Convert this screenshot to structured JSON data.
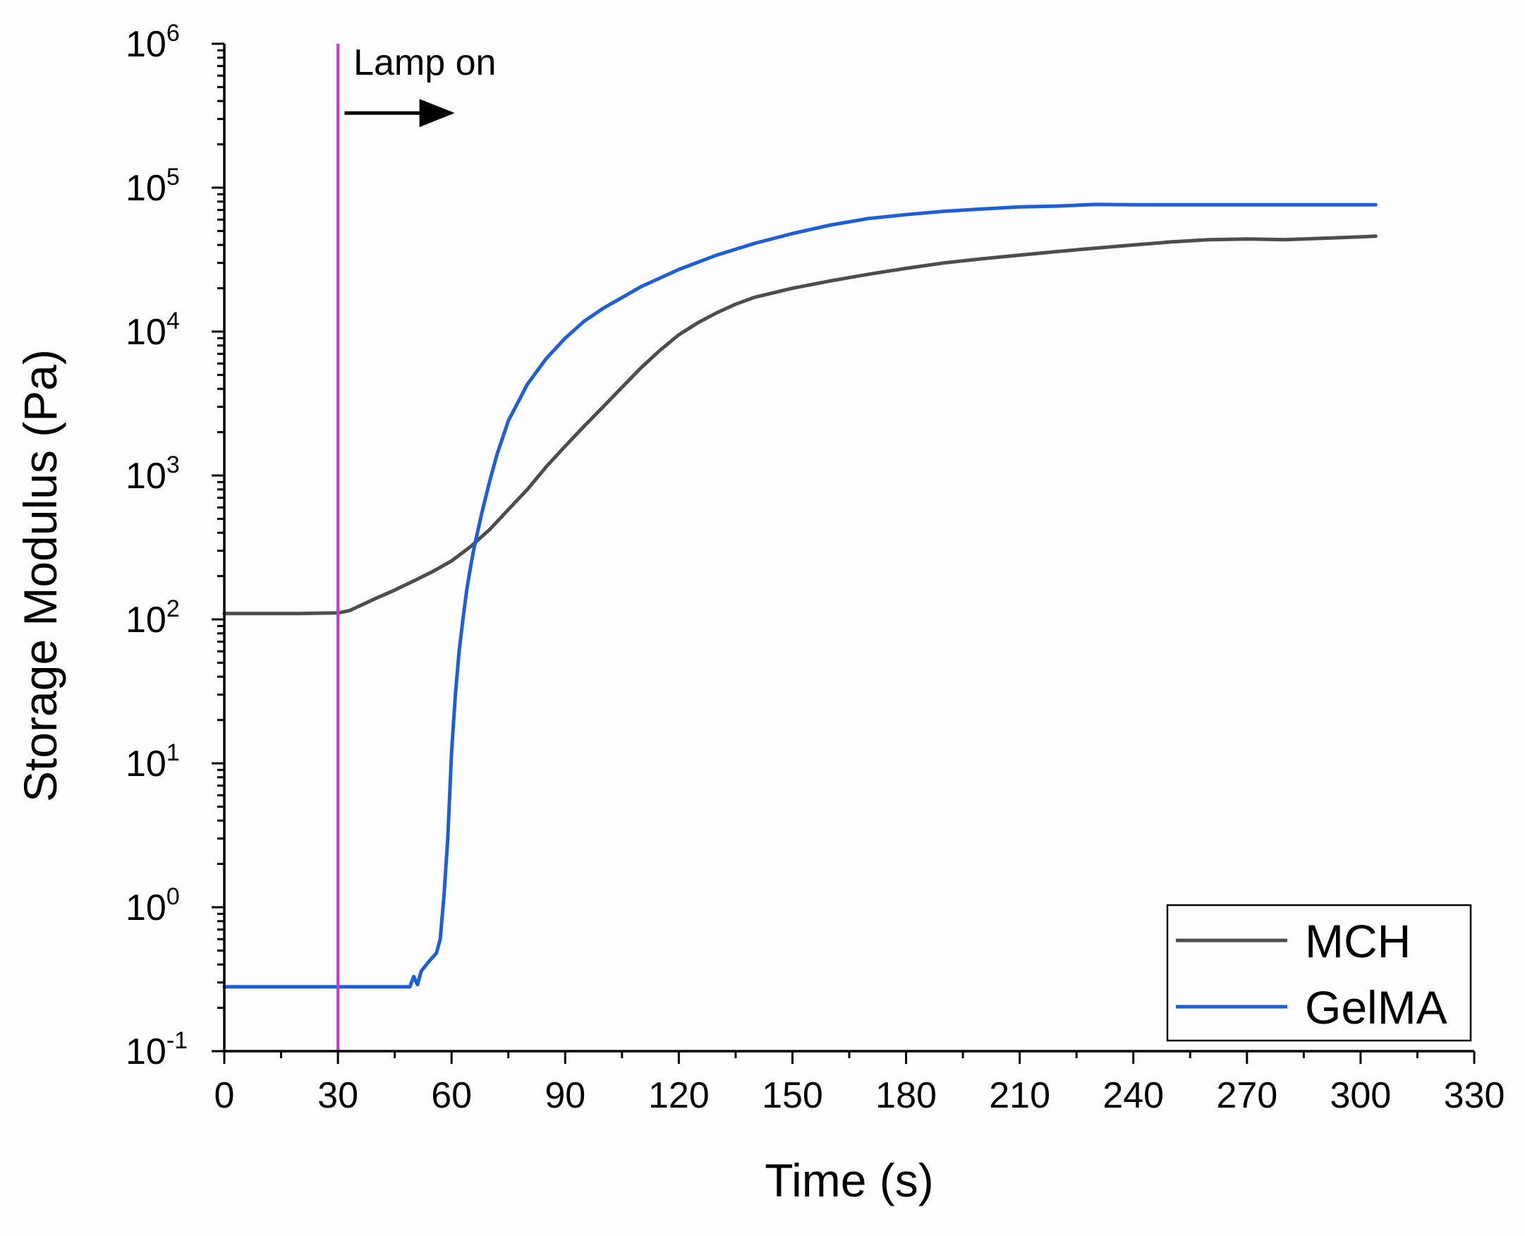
{
  "chart_data": {
    "type": "line",
    "xlabel": "Time (s)",
    "ylabel": "Storage Modulus (Pa)",
    "xlim": [
      0,
      330
    ],
    "ylim_log10": [
      -1,
      6
    ],
    "yscale": "log",
    "xticks": [
      0,
      30,
      60,
      90,
      120,
      150,
      180,
      210,
      240,
      270,
      300,
      330
    ],
    "yticks": [
      {
        "base": "10",
        "exp": "-1",
        "value": 0.1
      },
      {
        "base": "10",
        "exp": "0",
        "value": 1
      },
      {
        "base": "10",
        "exp": "1",
        "value": 10
      },
      {
        "base": "10",
        "exp": "2",
        "value": 100
      },
      {
        "base": "10",
        "exp": "3",
        "value": 1000
      },
      {
        "base": "10",
        "exp": "4",
        "value": 10000
      },
      {
        "base": "10",
        "exp": "5",
        "value": 100000
      },
      {
        "base": "10",
        "exp": "6",
        "value": 1000000
      }
    ],
    "legend_position": "bottom-right",
    "series": [
      {
        "name": "MCH",
        "color": "#4d4d4d",
        "points": [
          [
            0,
            110
          ],
          [
            10,
            110
          ],
          [
            20,
            110
          ],
          [
            30,
            111
          ],
          [
            33,
            115
          ],
          [
            36,
            125
          ],
          [
            40,
            140
          ],
          [
            45,
            160
          ],
          [
            50,
            185
          ],
          [
            55,
            215
          ],
          [
            60,
            255
          ],
          [
            65,
            320
          ],
          [
            70,
            420
          ],
          [
            75,
            580
          ],
          [
            80,
            800
          ],
          [
            85,
            1150
          ],
          [
            90,
            1600
          ],
          [
            95,
            2200
          ],
          [
            100,
            3000
          ],
          [
            105,
            4100
          ],
          [
            110,
            5600
          ],
          [
            115,
            7400
          ],
          [
            120,
            9500
          ],
          [
            125,
            11500
          ],
          [
            130,
            13500
          ],
          [
            135,
            15500
          ],
          [
            140,
            17300
          ],
          [
            150,
            20000
          ],
          [
            160,
            22500
          ],
          [
            170,
            25000
          ],
          [
            180,
            27500
          ],
          [
            190,
            30000
          ],
          [
            200,
            32000
          ],
          [
            210,
            34000
          ],
          [
            220,
            36000
          ],
          [
            230,
            38000
          ],
          [
            240,
            40000
          ],
          [
            250,
            42000
          ],
          [
            260,
            43500
          ],
          [
            270,
            44000
          ],
          [
            280,
            43500
          ],
          [
            290,
            44500
          ],
          [
            300,
            45500
          ],
          [
            304,
            46000
          ]
        ]
      },
      {
        "name": "GelMA",
        "color": "#1f5fd6",
        "points": [
          [
            0,
            0.28
          ],
          [
            10,
            0.28
          ],
          [
            20,
            0.28
          ],
          [
            30,
            0.28
          ],
          [
            40,
            0.28
          ],
          [
            49,
            0.28
          ],
          [
            50,
            0.33
          ],
          [
            51,
            0.29
          ],
          [
            52,
            0.36
          ],
          [
            54,
            0.42
          ],
          [
            56,
            0.48
          ],
          [
            57,
            0.6
          ],
          [
            58,
            1.2
          ],
          [
            59,
            3
          ],
          [
            60,
            12
          ],
          [
            61,
            30
          ],
          [
            62,
            60
          ],
          [
            63,
            100
          ],
          [
            64,
            160
          ],
          [
            65,
            230
          ],
          [
            66,
            320
          ],
          [
            68,
            550
          ],
          [
            70,
            900
          ],
          [
            72,
            1400
          ],
          [
            75,
            2400
          ],
          [
            80,
            4300
          ],
          [
            85,
            6500
          ],
          [
            90,
            9000
          ],
          [
            95,
            11800
          ],
          [
            100,
            14500
          ],
          [
            110,
            20500
          ],
          [
            120,
            27000
          ],
          [
            130,
            34000
          ],
          [
            140,
            41000
          ],
          [
            150,
            48000
          ],
          [
            160,
            55000
          ],
          [
            170,
            61000
          ],
          [
            180,
            65000
          ],
          [
            190,
            68500
          ],
          [
            200,
            71000
          ],
          [
            210,
            73500
          ],
          [
            220,
            74500
          ],
          [
            225,
            75500
          ],
          [
            230,
            76500
          ],
          [
            240,
            76000
          ],
          [
            260,
            76000
          ],
          [
            280,
            76000
          ],
          [
            304,
            76000
          ]
        ]
      }
    ],
    "annotations": {
      "vline_x": 30,
      "vline_color": "#cc33dd",
      "lamp_label": "Lamp on",
      "arrow_x_range": [
        31,
        61
      ],
      "arrow_y": 330000
    }
  }
}
